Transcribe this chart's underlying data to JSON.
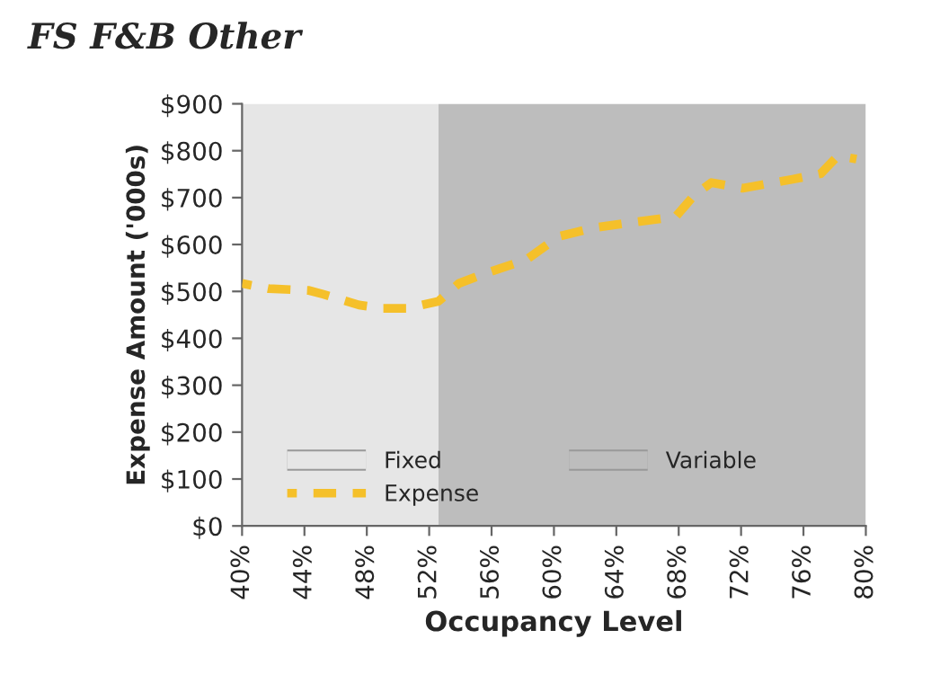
{
  "chart_data": {
    "type": "line",
    "title": "FS F&B Other",
    "xlabel": "Occupancy Level",
    "ylabel": "Expense Amount ('000s)",
    "x": [
      40,
      41.7,
      44.3,
      45.2,
      47.5,
      49,
      50.6,
      52.6,
      53.9,
      55.4,
      58.2,
      60.3,
      62.6,
      65.2,
      67.8,
      69,
      70.1,
      72.1,
      75.3,
      77.1,
      78.2,
      79.4
    ],
    "series": [
      {
        "name": "Expense",
        "color": "#f5c02a",
        "values": [
          517,
          506,
          502,
          494,
          471,
          464,
          464,
          479,
          517,
          536,
          567,
          617,
          636,
          648,
          659,
          705,
          732,
          720,
          739,
          751,
          789,
          782
        ]
      }
    ],
    "bands": [
      {
        "axis": "x",
        "from": 40,
        "to": 52.6,
        "label": "Fixed",
        "color": "#e6e6e6"
      },
      {
        "axis": "x",
        "from": 52.6,
        "to": 80,
        "label": "Variable",
        "color": "#bdbdbd"
      }
    ],
    "xlim": [
      40,
      80
    ],
    "xticks": [
      {
        "value": 40,
        "label": "40%"
      },
      {
        "value": 44,
        "label": "44%"
      },
      {
        "value": 48,
        "label": "48%"
      },
      {
        "value": 52,
        "label": "52%"
      },
      {
        "value": 56,
        "label": "56%"
      },
      {
        "value": 60,
        "label": "60%"
      },
      {
        "value": 64,
        "label": "64%"
      },
      {
        "value": 68,
        "label": "68%"
      },
      {
        "value": 72,
        "label": "72%"
      },
      {
        "value": 76,
        "label": "76%"
      },
      {
        "value": 80,
        "label": "80%"
      }
    ],
    "ylim": [
      0,
      900
    ],
    "yticks": [
      {
        "value": 0,
        "label": "$0"
      },
      {
        "value": 100,
        "label": "$100"
      },
      {
        "value": 200,
        "label": "$200"
      },
      {
        "value": 300,
        "label": "$300"
      },
      {
        "value": 400,
        "label": "$400"
      },
      {
        "value": 500,
        "label": "$500"
      },
      {
        "value": 600,
        "label": "$600"
      },
      {
        "value": 700,
        "label": "$700"
      },
      {
        "value": 800,
        "label": "$800"
      },
      {
        "value": 900,
        "label": "$900"
      }
    ],
    "grid": false,
    "legend": "bottom left",
    "line_style": "dashed",
    "marker": "none"
  }
}
